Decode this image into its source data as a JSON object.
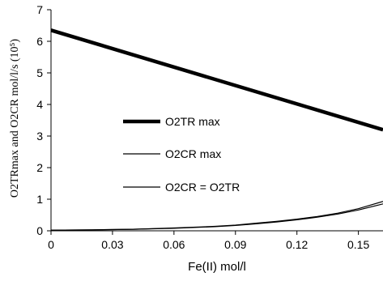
{
  "chart_data": {
    "type": "line",
    "title": "",
    "xlabel": "Fe(II) mol/l",
    "ylabel": "O2TRmax and O2CR mol/l/s (10⁵)",
    "xlim": [
      0,
      0.162
    ],
    "ylim": [
      0,
      7
    ],
    "x_ticks": [
      0,
      0.03,
      0.06,
      0.09,
      0.12,
      0.15
    ],
    "x_tick_labels": [
      "0",
      "0.03",
      "0.06",
      "0.09",
      "0.12",
      "0.15"
    ],
    "y_ticks": [
      0,
      1,
      2,
      3,
      4,
      5,
      6,
      7
    ],
    "y_tick_labels": [
      "0",
      "1",
      "2",
      "3",
      "4",
      "5",
      "6",
      "7"
    ],
    "grid": false,
    "legend_position": "center-left",
    "series": [
      {
        "name": "O2TR max",
        "style": "thick",
        "color": "#000000",
        "x": [
          0,
          0.162
        ],
        "y": [
          6.35,
          3.2
        ]
      },
      {
        "name": "O2CR max",
        "style": "thin",
        "color": "#000000",
        "x": [
          0,
          0.02,
          0.04,
          0.06,
          0.08,
          0.09,
          0.1,
          0.11,
          0.12,
          0.13,
          0.14,
          0.15,
          0.162
        ],
        "y": [
          0.02,
          0.03,
          0.05,
          0.09,
          0.14,
          0.18,
          0.24,
          0.3,
          0.37,
          0.45,
          0.56,
          0.7,
          0.93
        ]
      },
      {
        "name": "O2CR = O2TR",
        "style": "thin",
        "color": "#000000",
        "x": [
          0,
          0.02,
          0.04,
          0.06,
          0.08,
          0.09,
          0.1,
          0.11,
          0.12,
          0.13,
          0.14,
          0.15,
          0.162
        ],
        "y": [
          0.02,
          0.03,
          0.05,
          0.08,
          0.13,
          0.17,
          0.22,
          0.28,
          0.35,
          0.43,
          0.53,
          0.66,
          0.85
        ]
      }
    ]
  }
}
